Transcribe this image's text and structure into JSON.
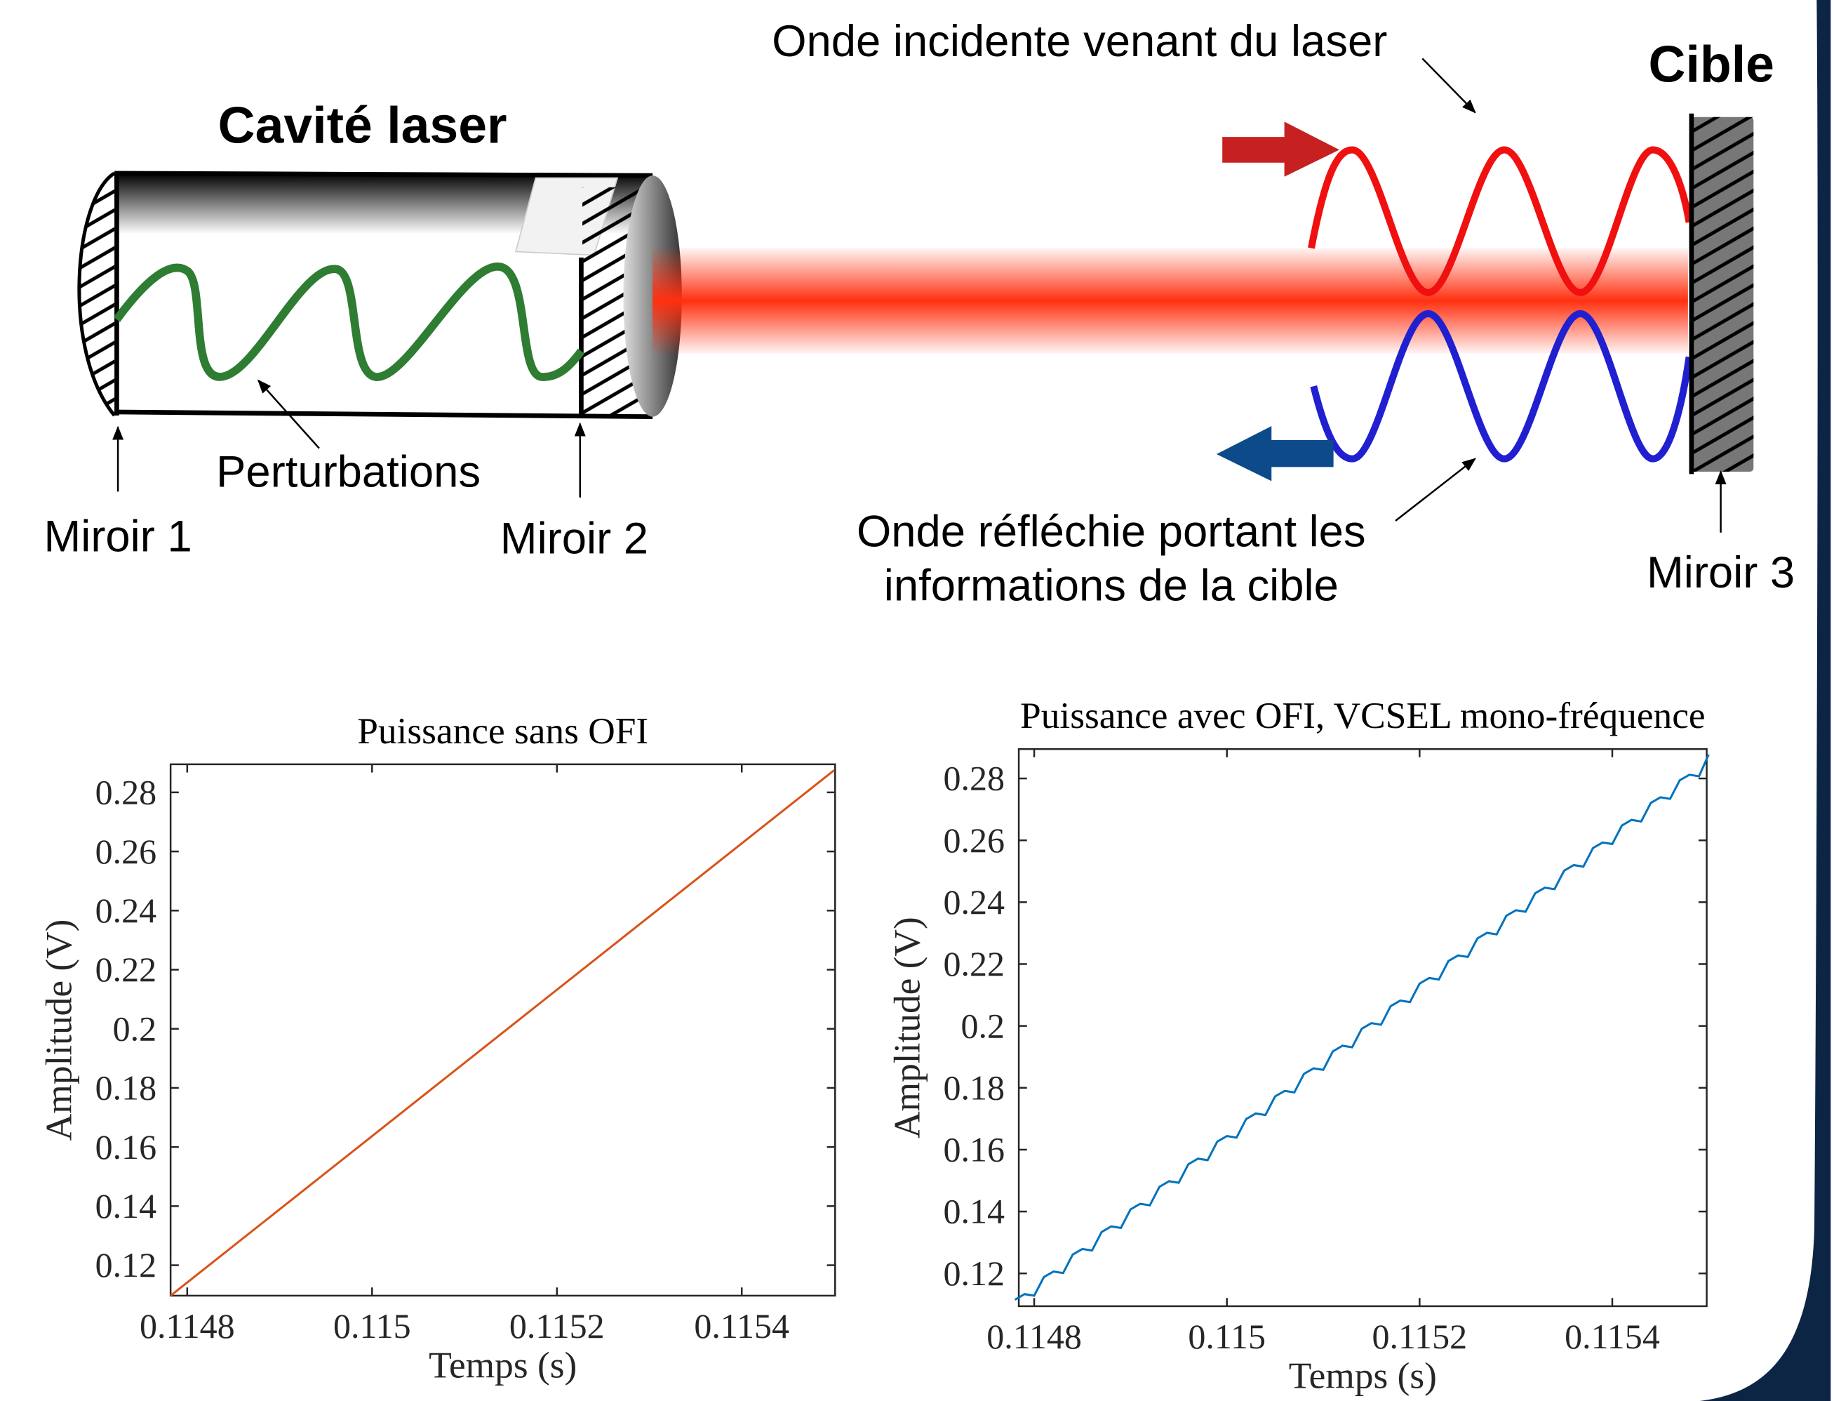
{
  "diagram": {
    "cavity_title": "Cavité laser",
    "perturbations": "Perturbations",
    "mirror1": "Miroir 1",
    "mirror2": "Miroir 2",
    "incident_wave": "Onde incidente venant du laser",
    "target": "Cible",
    "reflected_wave": [
      "Onde réfléchie portant les",
      "informations de la cible"
    ],
    "mirror3": "Miroir 3"
  },
  "chart_data": [
    {
      "type": "line",
      "title": "Puissance sans OFI",
      "x_label": "Temps (s)",
      "y_label": "Amplitude (V)",
      "x": [
        0.114782,
        0.1155
      ],
      "values": [
        0.1097,
        0.2875
      ],
      "color": "#d95319",
      "xlim": [
        0.114782,
        0.115501
      ],
      "xticks": [
        0.1148,
        0.115,
        0.1152,
        0.1154
      ],
      "ylim": [
        0.1097,
        0.2895
      ],
      "yticks": [
        0.12,
        0.14,
        0.16,
        0.18,
        0.2,
        0.22,
        0.24,
        0.26,
        0.28
      ]
    },
    {
      "type": "line",
      "title": "Puissance avec OFI, VCSEL mono-fréquence",
      "x_label": "Temps (s)",
      "y_label": "Amplitude (V)",
      "x": [
        0.11478,
        0.11479,
        0.1148,
        0.11481,
        0.11482,
        0.11483,
        0.11484,
        0.11485,
        0.11486,
        0.11487,
        0.11488,
        0.11489,
        0.1149,
        0.11491,
        0.11492,
        0.11493,
        0.11494,
        0.11495,
        0.11496,
        0.11497,
        0.11498,
        0.11499,
        0.115,
        0.11501,
        0.11502,
        0.11503,
        0.11504,
        0.11505,
        0.11506,
        0.11507,
        0.11508,
        0.11509,
        0.1151,
        0.11511,
        0.11512,
        0.11513,
        0.11514,
        0.11515,
        0.11516,
        0.11517,
        0.11518,
        0.11519,
        0.1152,
        0.11521,
        0.11522,
        0.11523,
        0.11524,
        0.11525,
        0.11526,
        0.11527,
        0.11528,
        0.11529,
        0.1153,
        0.11531,
        0.11532,
        0.11533,
        0.11534,
        0.11535,
        0.11536,
        0.11537,
        0.11538,
        0.11539,
        0.1154,
        0.11541,
        0.11542,
        0.11543,
        0.11544,
        0.11545,
        0.11546,
        0.11547,
        0.11548,
        0.11549,
        0.1155
      ],
      "values": [
        0.1115,
        0.1133,
        0.1128,
        0.1188,
        0.1206,
        0.1201,
        0.1261,
        0.1279,
        0.1274,
        0.1334,
        0.1352,
        0.1347,
        0.1407,
        0.1425,
        0.142,
        0.148,
        0.1498,
        0.1493,
        0.1553,
        0.1571,
        0.1566,
        0.1626,
        0.1644,
        0.1639,
        0.1699,
        0.1717,
        0.1712,
        0.1772,
        0.179,
        0.1785,
        0.1845,
        0.1863,
        0.1858,
        0.1918,
        0.1936,
        0.1931,
        0.1991,
        0.2009,
        0.2004,
        0.2064,
        0.2082,
        0.2077,
        0.2137,
        0.2155,
        0.215,
        0.221,
        0.2228,
        0.2223,
        0.2283,
        0.2301,
        0.2296,
        0.2356,
        0.2374,
        0.2369,
        0.2429,
        0.2447,
        0.2442,
        0.2502,
        0.252,
        0.2515,
        0.2575,
        0.2593,
        0.2588,
        0.2648,
        0.2666,
        0.2661,
        0.2721,
        0.2739,
        0.2734,
        0.2794,
        0.2812,
        0.2807,
        0.2877
      ],
      "color": "#0072bd",
      "xlim": [
        0.114784,
        0.115498
      ],
      "xticks": [
        0.1148,
        0.115,
        0.1152,
        0.1154
      ],
      "ylim": [
        0.1094,
        0.2895
      ],
      "yticks": [
        0.12,
        0.14,
        0.16,
        0.18,
        0.2,
        0.22,
        0.24,
        0.26,
        0.28
      ]
    }
  ]
}
